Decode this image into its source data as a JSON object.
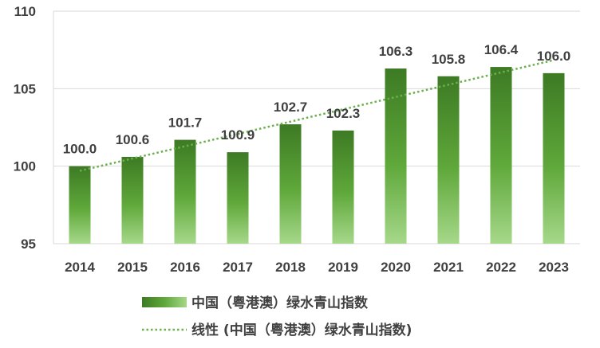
{
  "chart_data": {
    "type": "bar",
    "title": "",
    "xlabel": "",
    "ylabel": "",
    "categories": [
      "2014",
      "2015",
      "2016",
      "2017",
      "2018",
      "2019",
      "2020",
      "2021",
      "2022",
      "2023"
    ],
    "series": [
      {
        "name": "中国（粤港澳）绿水青山指数",
        "values": [
          100.0,
          100.6,
          101.7,
          100.9,
          102.7,
          102.3,
          106.3,
          105.8,
          106.4,
          106.0
        ],
        "labels": [
          "100.0",
          "100.6",
          "101.7",
          "100.9",
          "102.7",
          "102.3",
          "106.3",
          "105.8",
          "106.4",
          "106.0"
        ]
      }
    ],
    "trendline": {
      "name": "线性 (中国（粤港澳）绿水青山指数)",
      "type": "linear",
      "style": "dotted"
    },
    "ylim": [
      95,
      110
    ],
    "yticks": [
      95,
      100,
      105,
      110
    ],
    "grid": true,
    "legend": "bottom",
    "colors": {
      "bar_top": "#3d7a24",
      "bar_mid": "#5fa83a",
      "bar_bottom": "#a6d88a",
      "trend": "#6ab04c",
      "grid": "#d9d9d9",
      "text": "#404040"
    }
  }
}
